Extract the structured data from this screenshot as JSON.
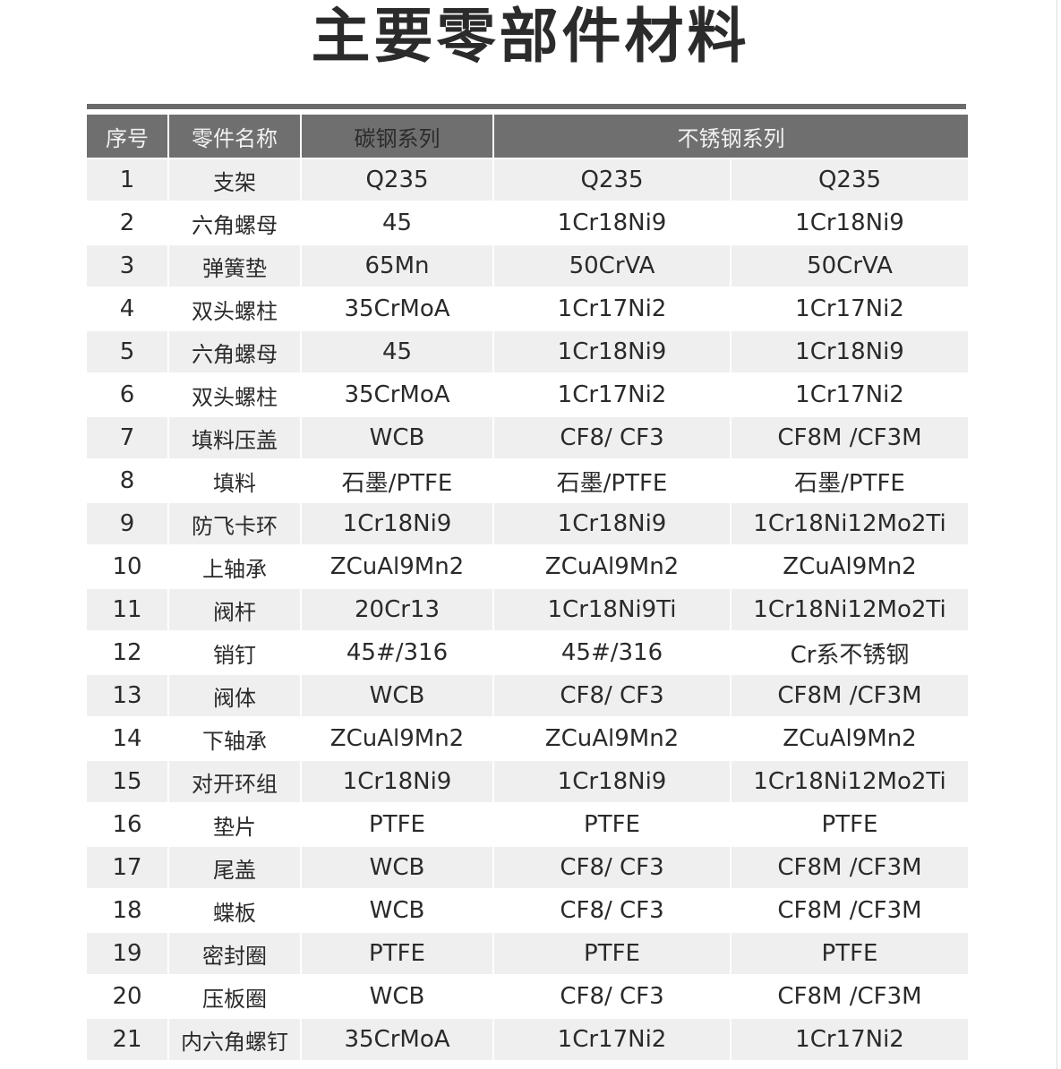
{
  "title": "主要零部件材料",
  "headers": {
    "no": "序号",
    "name": "零件名称",
    "carbon": "碳钢系列",
    "stainless": "不锈钢系列"
  },
  "rows": [
    [
      "1",
      "支架",
      "Q235",
      "Q235",
      "Q235"
    ],
    [
      "2",
      "六角螺母",
      "45",
      "1Cr18Ni9",
      "1Cr18Ni9"
    ],
    [
      "3",
      "弹簧垫",
      "65Mn",
      "50CrVA",
      "50CrVA"
    ],
    [
      "4",
      "双头螺柱",
      "35CrMoA",
      "1Cr17Ni2",
      "1Cr17Ni2"
    ],
    [
      "5",
      "六角螺母",
      "45",
      "1Cr18Ni9",
      "1Cr18Ni9"
    ],
    [
      "6",
      "双头螺柱",
      "35CrMoA",
      "1Cr17Ni2",
      "1Cr17Ni2"
    ],
    [
      "7",
      "填料压盖",
      "WCB",
      "CF8/ CF3",
      "CF8M /CF3M"
    ],
    [
      "8",
      "填料",
      "石墨/PTFE",
      "石墨/PTFE",
      "石墨/PTFE"
    ],
    [
      "9",
      "防飞卡环",
      "1Cr18Ni9",
      "1Cr18Ni9",
      "1Cr18Ni12Mo2Ti"
    ],
    [
      "10",
      "上轴承",
      "ZCuAl9Mn2",
      "ZCuAl9Mn2",
      "ZCuAl9Mn2"
    ],
    [
      "11",
      "阀杆",
      "20Cr13",
      "1Cr18Ni9Ti",
      "1Cr18Ni12Mo2Ti"
    ],
    [
      "12",
      "销钉",
      "45#/316",
      "45#/316",
      "Cr系不锈钢"
    ],
    [
      "13",
      "阀体",
      "WCB",
      "CF8/ CF3",
      "CF8M /CF3M"
    ],
    [
      "14",
      "下轴承",
      "ZCuAl9Mn2",
      "ZCuAl9Mn2",
      "ZCuAl9Mn2"
    ],
    [
      "15",
      "对开环组",
      "1Cr18Ni9",
      "1Cr18Ni9",
      "1Cr18Ni12Mo2Ti"
    ],
    [
      "16",
      "垫片",
      "PTFE",
      "PTFE",
      "PTFE"
    ],
    [
      "17",
      "尾盖",
      "WCB",
      "CF8/ CF3",
      "CF8M /CF3M"
    ],
    [
      "18",
      "蝶板",
      "WCB",
      "CF8/ CF3",
      "CF8M /CF3M"
    ],
    [
      "19",
      "密封圈",
      "PTFE",
      "PTFE",
      "PTFE"
    ],
    [
      "20",
      "压板圈",
      "WCB",
      "CF8/ CF3",
      "CF8M /CF3M"
    ],
    [
      "21",
      "内六角螺钉",
      "35CrMoA",
      "1Cr17Ni2",
      "1Cr17Ni2"
    ]
  ]
}
